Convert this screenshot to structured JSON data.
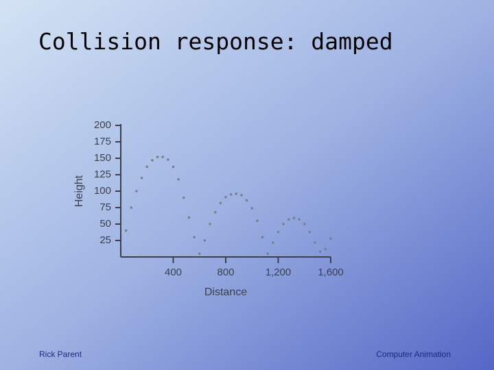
{
  "title": "Collision response: damped",
  "footer_left": "Rick Parent",
  "footer_right": "Computer Animation",
  "chart_data": {
    "type": "scatter",
    "xlabel": "Distance",
    "ylabel": "Height",
    "xlim": [
      0,
      1600
    ],
    "ylim": [
      0,
      200
    ],
    "xticks": [
      400,
      800,
      {
        "value": 1200,
        "label": "1,200"
      },
      {
        "value": 1600,
        "label": "1,600"
      }
    ],
    "yticks": [
      25,
      50,
      75,
      100,
      125,
      150,
      175,
      200
    ],
    "color": "#7a7f8c",
    "x": [
      40,
      80,
      120,
      160,
      200,
      240,
      280,
      320,
      360,
      400,
      440,
      480,
      520,
      560,
      600,
      640,
      680,
      720,
      760,
      800,
      840,
      880,
      920,
      960,
      1000,
      1040,
      1080,
      1120,
      1160,
      1200,
      1240,
      1280,
      1320,
      1360,
      1400,
      1440,
      1480,
      1520,
      1560,
      1600
    ],
    "values": [
      40,
      75,
      100,
      120,
      137,
      147,
      152,
      152,
      148,
      137,
      118,
      90,
      60,
      30,
      5,
      25,
      50,
      68,
      82,
      91,
      95,
      96,
      94,
      86,
      74,
      55,
      30,
      5,
      22,
      38,
      50,
      57,
      59,
      57,
      50,
      38,
      22,
      8,
      12,
      28
    ]
  }
}
